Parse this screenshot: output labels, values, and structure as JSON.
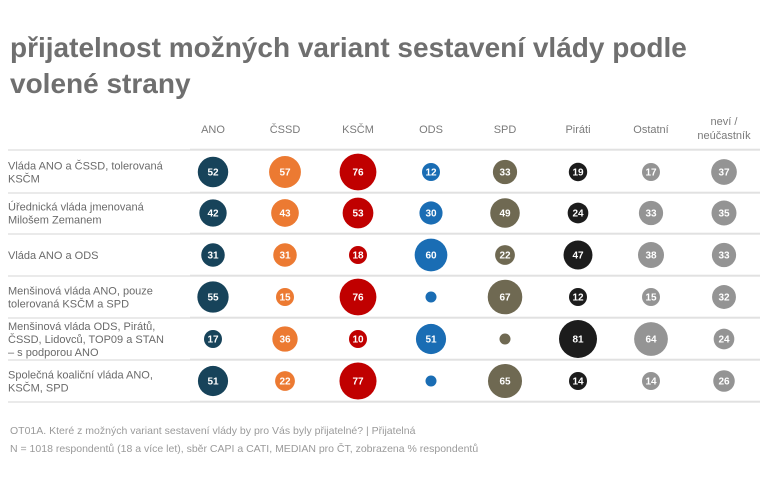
{
  "title": "přijatelnost možných variant sestavení vlády podle volené strany",
  "footnote": {
    "line1": "OT01A. Které z možných variant sestavení vlády by pro Vás byly přijatelné? | Přijatelná",
    "line2": "N = 1018 respondentů (18 a více let), sběr CAPI a CATI, MEDIAN pro ČT, zobrazena % respondentů"
  },
  "chart_data": {
    "type": "bubble-table",
    "unit": "% respondentů",
    "columns": [
      {
        "label": "ANO",
        "color": "#17435a"
      },
      {
        "label": "ČSSD",
        "color": "#ec7a32"
      },
      {
        "label": "KSČM",
        "color": "#c00000"
      },
      {
        "label": "ODS",
        "color": "#1a6db4"
      },
      {
        "label": "SPD",
        "color": "#6f6952"
      },
      {
        "label": "Piráti",
        "color": "#1c1c1c"
      },
      {
        "label": "Ostatní",
        "color": "#949494"
      },
      {
        "label": "neví / neúčastník",
        "color": "#949494"
      }
    ],
    "rows": [
      {
        "label": "Vláda ANO a ČSSD, tolerovaná KSČM",
        "values": [
          52,
          57,
          76,
          12,
          33,
          19,
          17,
          37
        ]
      },
      {
        "label": "Úřednická vláda jmenovaná Milošem Zemanem",
        "values": [
          42,
          43,
          53,
          30,
          49,
          24,
          33,
          35
        ]
      },
      {
        "label": "Vláda ANO a ODS",
        "values": [
          31,
          31,
          18,
          60,
          22,
          47,
          38,
          33
        ]
      },
      {
        "label": "Menšinová vláda ANO, pouze tolerovaná KSČM a SPD",
        "values": [
          55,
          15,
          76,
          null,
          67,
          12,
          15,
          32
        ]
      },
      {
        "label": "Menšinová vláda ODS, Pirátů, ČSSD, Lidovců, TOP09 a STAN – s podporou ANO",
        "values": [
          17,
          36,
          10,
          51,
          null,
          81,
          64,
          24
        ]
      },
      {
        "label": "Společná koaliční vláda ANO, KSČM, SPD",
        "values": [
          51,
          22,
          77,
          null,
          65,
          14,
          14,
          26
        ]
      }
    ]
  }
}
